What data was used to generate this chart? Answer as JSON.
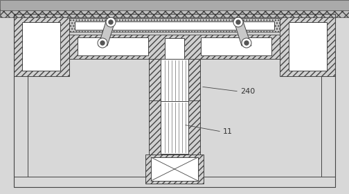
{
  "bg_color": "#d8d8d8",
  "line_color": "#444444",
  "white": "#ffffff",
  "hatch_gray": "#c8c8c8",
  "label_240": "240",
  "label_11": "11",
  "figsize": [
    5.04,
    2.8
  ],
  "dpi": 100
}
